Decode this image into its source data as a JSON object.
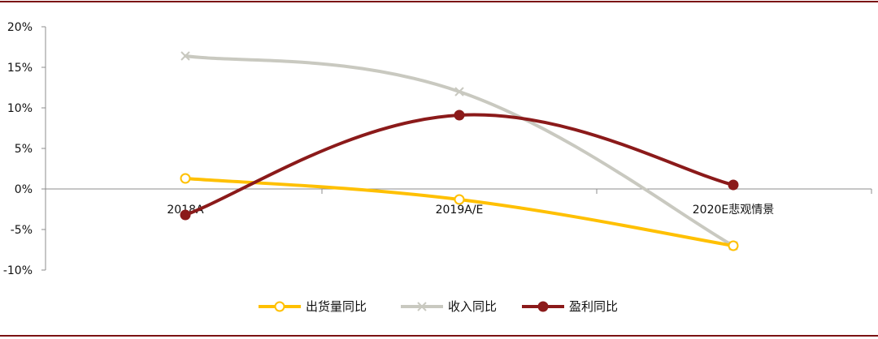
{
  "chart_data": {
    "type": "line",
    "categories": [
      "2018A",
      "2019A/E",
      "2020E悲观情景"
    ],
    "yticks": [
      "20%",
      "15%",
      "10%",
      "5%",
      "0%",
      "-5%",
      "-10%"
    ],
    "ylim": [
      -10,
      20
    ],
    "smooth": true,
    "legend_position": "bottom",
    "series": [
      {
        "name": "出货量同比",
        "values": [
          1.3,
          -1.3,
          -7.0
        ],
        "color": "#FFC000",
        "marker": "circle-open"
      },
      {
        "name": "收入同比",
        "values": [
          16.4,
          12.0,
          -7.0
        ],
        "color": "#C9C9C0",
        "marker": "x"
      },
      {
        "name": "盈利同比",
        "values": [
          -3.2,
          9.1,
          0.5
        ],
        "color": "#8B1A1A",
        "marker": "circle-filled"
      }
    ]
  },
  "frame_color": "#7B1113"
}
